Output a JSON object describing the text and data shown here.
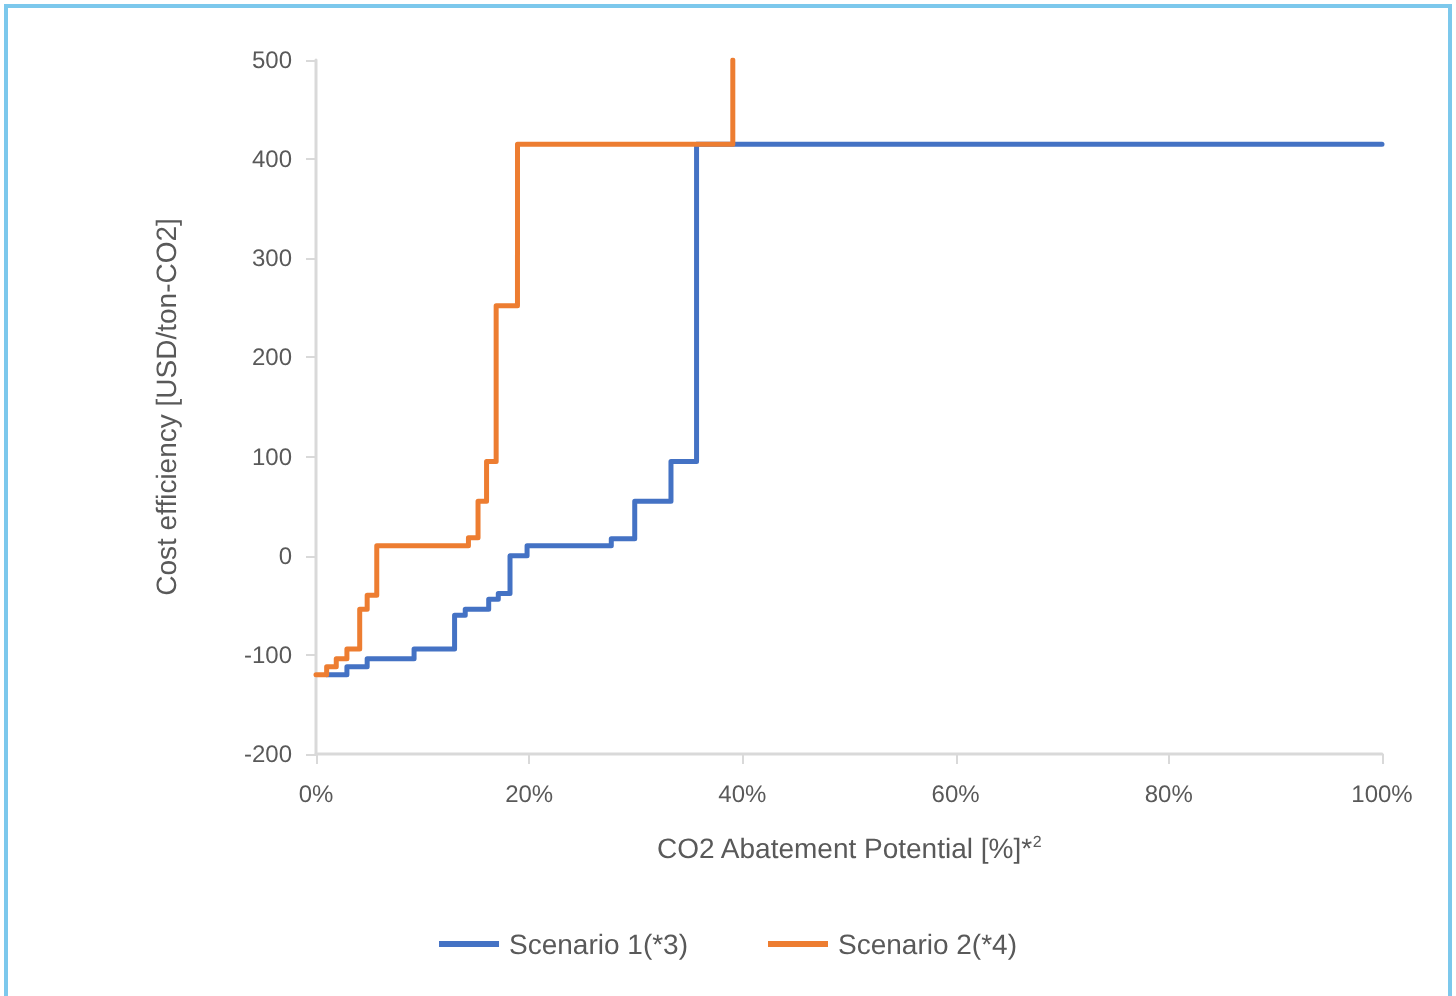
{
  "chart_data": {
    "type": "step",
    "xlabel": "CO2 Abatement Potential [%]*$^{2}$",
    "ylabel": "Cost efficiency [USD/ton-CO2]",
    "xlim": [
      0,
      100
    ],
    "xticks": [
      {
        "value": 0,
        "label": "0%"
      },
      {
        "value": 20,
        "label": "20%"
      },
      {
        "value": 40,
        "label": "40%"
      },
      {
        "value": 60,
        "label": "60%"
      },
      {
        "value": 80,
        "label": "80%"
      },
      {
        "value": 100,
        "label": "100%"
      }
    ],
    "ylim": [
      -200,
      500
    ],
    "yticks": [
      -200,
      -100,
      0,
      100,
      200,
      300,
      400,
      500
    ],
    "grid": false,
    "legend": "bottom",
    "line_style": "solid",
    "marker": "none",
    "series": [
      {
        "name": "Scenario 1(*3)",
        "color": "#4472c4",
        "x": [
          1,
          2.9,
          4.8,
          9.2,
          13,
          14,
          16.2,
          17.1,
          18.2,
          19.8,
          27.7,
          29.9,
          33.3,
          35.7,
          100
        ],
        "values": [
          -120,
          -112,
          -104,
          -94,
          -60,
          -54,
          -44,
          -38,
          0,
          10,
          17,
          55,
          95,
          415,
          415
        ]
      },
      {
        "name": "Scenario 2(*4)",
        "color": "#ed7d31",
        "x": [
          0,
          1,
          1.9,
          2.9,
          4.1,
          4.8,
          5.7,
          14.3,
          15.2,
          16,
          16.9,
          18.9,
          39.1
        ],
        "values": [
          -120,
          -112,
          -104,
          -94,
          -54,
          -40,
          10,
          18,
          55,
          95,
          252,
          415,
          500
        ]
      }
    ]
  }
}
